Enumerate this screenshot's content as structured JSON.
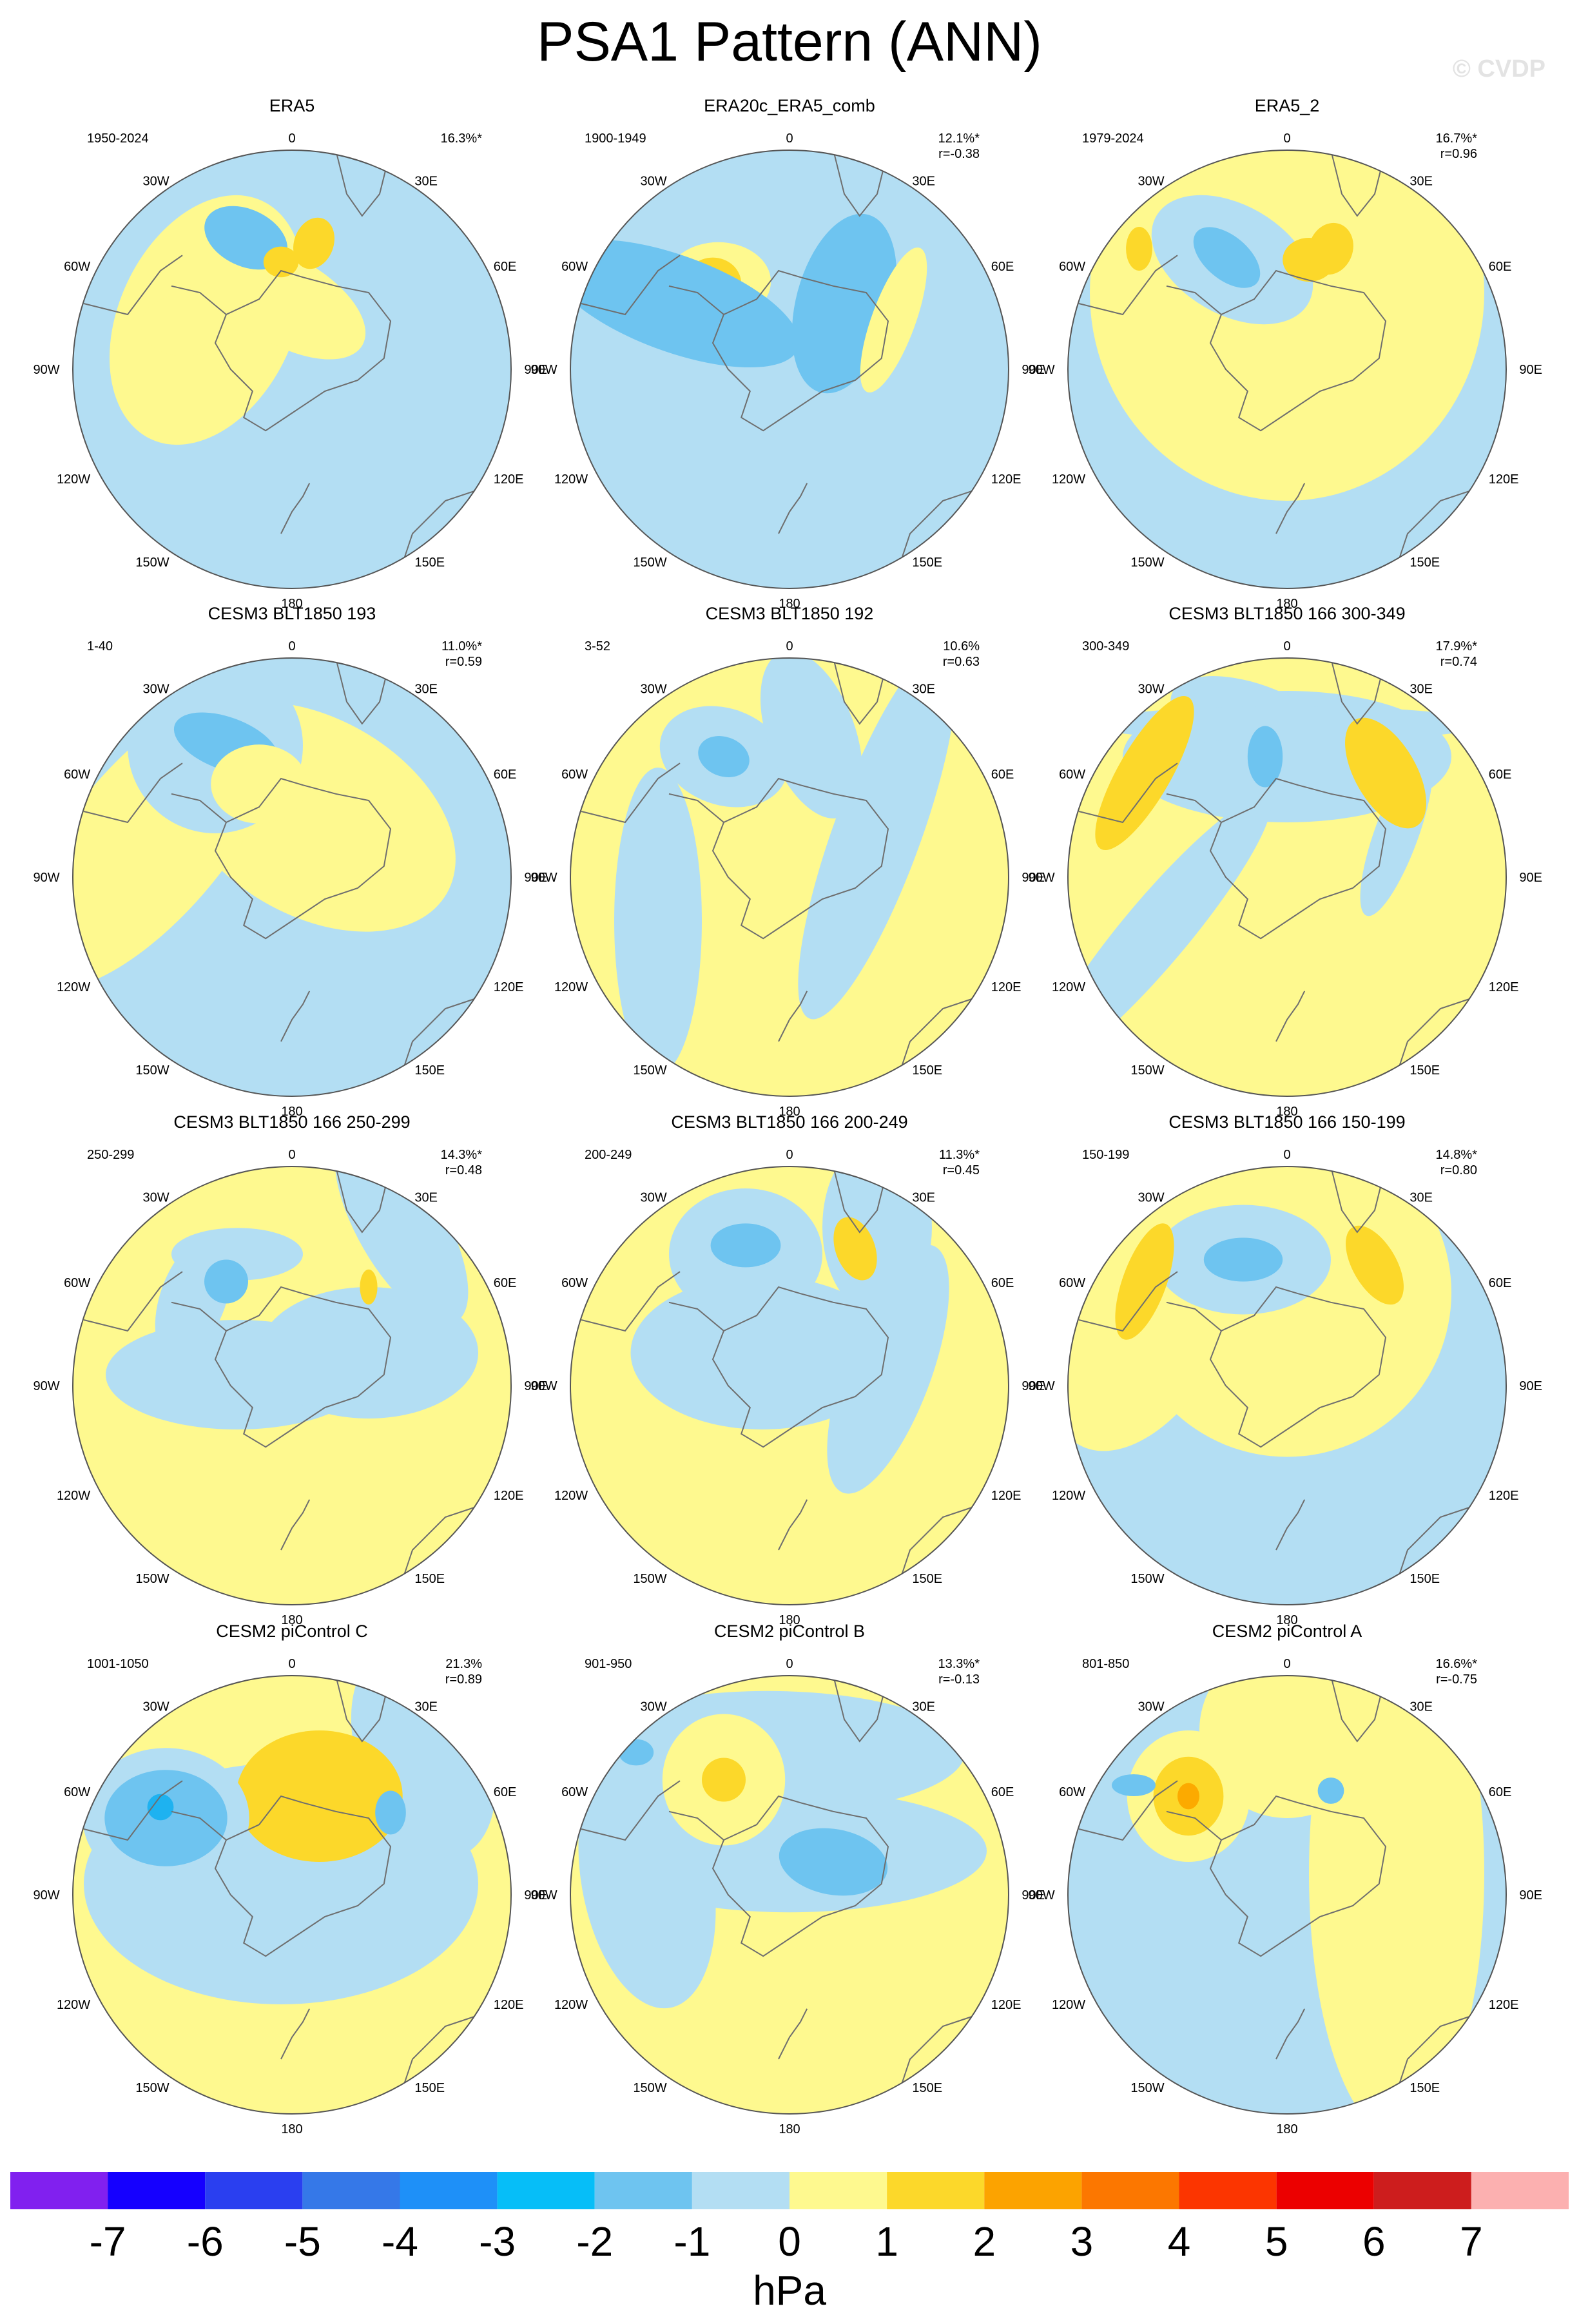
{
  "title": "PSA1 Pattern (ANN)",
  "watermark": "© CVDP",
  "colors": {
    "land_outline": "#6e6e6e",
    "map_border": "#555555",
    "neg1": "#b3def3",
    "neg2": "#6ec4f0",
    "neg3": "#1eb2f0",
    "pos1": "#fef98f",
    "pos2": "#fcd82a",
    "pos3": "#fcaa00"
  },
  "map_labels": {
    "top": "0",
    "bottom": "180",
    "left": [
      "30W",
      "60W",
      "90W",
      "120W",
      "150W"
    ],
    "right": [
      "30E",
      "60E",
      "90E",
      "120E",
      "150E"
    ]
  },
  "chart_data": [
    {
      "type": "heatmap",
      "title": "ERA5",
      "years": "1950-2024",
      "pct": "16.3%*",
      "r": "",
      "base": "neg1",
      "blobs": [
        [
          "pos1",
          -78,
          -45,
          40,
          60,
          25
        ],
        [
          "pos1",
          -5,
          -62,
          40,
          20,
          30
        ],
        [
          "neg2",
          -42,
          -120,
          20,
          13,
          25
        ],
        [
          "pos2",
          -10,
          -98,
          8,
          7,
          0
        ],
        [
          "pos2",
          20,
          -115,
          9,
          12,
          20
        ],
        [
          "pos1",
          -98,
          -40,
          20,
          14,
          0
        ]
      ]
    },
    {
      "type": "heatmap",
      "title": "ERA20c_ERA5_comb",
      "years": "1900-1949",
      "pct": "12.1%*",
      "r": "r=-0.38",
      "base": "neg1",
      "blobs": [
        [
          "pos1",
          -65,
          -80,
          24,
          18,
          0
        ],
        [
          "pos2",
          -70,
          -78,
          13,
          12,
          0
        ],
        [
          "neg2",
          -105,
          -60,
          22,
          60,
          -70
        ],
        [
          "neg2",
          50,
          -60,
          22,
          42,
          15
        ],
        [
          "pos1",
          95,
          -45,
          10,
          35,
          20
        ]
      ]
    },
    {
      "type": "heatmap",
      "title": "ERA5_2",
      "years": "1979-2024",
      "pct": "16.7%*",
      "r": "r=0.96",
      "base": "neg1",
      "blobs": [
        [
          "pos1",
          0,
          -70,
          90,
          95,
          0
        ],
        [
          "neg1",
          -50,
          -100,
          40,
          25,
          30
        ],
        [
          "neg2",
          -55,
          -102,
          18,
          10,
          40
        ],
        [
          "pos2",
          20,
          -100,
          12,
          10,
          0
        ],
        [
          "pos2",
          40,
          -110,
          10,
          12,
          20
        ],
        [
          "pos2",
          -135,
          -110,
          6,
          10,
          0
        ]
      ]
    },
    {
      "type": "heatmap",
      "title": "CESM3 BLT1850 193",
      "years": "1-40",
      "pct": "11.0%*",
      "r": "r=0.59",
      "base": "neg1",
      "blobs": [
        [
          "pos1",
          20,
          -55,
          70,
          45,
          30
        ],
        [
          "pos1",
          -130,
          -35,
          35,
          85,
          40
        ],
        [
          "neg1",
          -70,
          -120,
          40,
          40,
          0
        ],
        [
          "neg2",
          -60,
          -122,
          25,
          12,
          20
        ],
        [
          "pos1",
          -30,
          -85,
          22,
          18,
          0
        ]
      ]
    },
    {
      "type": "heatmap",
      "title": "CESM3 BLT1850 192",
      "years": "3-52",
      "pct": "10.6%",
      "r": "r=0.63",
      "base": "pos1",
      "blobs": [
        [
          "neg1",
          80,
          -40,
          20,
          90,
          20
        ],
        [
          "neg1",
          -60,
          -110,
          30,
          22,
          20
        ],
        [
          "neg2",
          -60,
          -110,
          12,
          9,
          20
        ],
        [
          "neg1",
          20,
          -130,
          20,
          40,
          -20
        ],
        [
          "neg1",
          -120,
          40,
          20,
          70,
          0
        ]
      ]
    },
    {
      "type": "heatmap",
      "title": "CESM3 BLT1850 166 300-349",
      "years": "300-349",
      "pct": "17.9%*",
      "r": "r=0.74",
      "base": "pos1",
      "blobs": [
        [
          "neg1",
          0,
          -110,
          75,
          30,
          0
        ],
        [
          "neg1",
          -30,
          -140,
          40,
          18,
          20
        ],
        [
          "neg1",
          -120,
          50,
          15,
          80,
          40
        ],
        [
          "neg1",
          100,
          -40,
          10,
          40,
          20
        ],
        [
          "neg1",
          0,
          -140,
          90,
          8,
          0
        ],
        [
          "pos2",
          -130,
          -95,
          12,
          40,
          30
        ],
        [
          "pos2",
          90,
          -95,
          14,
          28,
          -30
        ],
        [
          "neg2",
          -20,
          -110,
          8,
          14,
          0
        ]
      ]
    },
    {
      "type": "heatmap",
      "title": "CESM3 BLT1850 166 250-299",
      "years": "250-299",
      "pct": "14.3%*",
      "r": "r=0.48",
      "base": "pos1",
      "blobs": [
        [
          "neg1",
          -50,
          -10,
          60,
          25,
          0
        ],
        [
          "neg1",
          -90,
          -80,
          15,
          30,
          20
        ],
        [
          "neg1",
          -50,
          -120,
          30,
          12,
          0
        ],
        [
          "neg1",
          100,
          -145,
          20,
          50,
          -30
        ],
        [
          "neg1",
          70,
          -30,
          50,
          30,
          0
        ],
        [
          "neg2",
          -60,
          -95,
          10,
          10,
          0
        ],
        [
          "pos2",
          70,
          -90,
          4,
          8,
          0
        ]
      ]
    },
    {
      "type": "heatmap",
      "title": "CESM3 BLT1850 166 200-249",
      "years": "200-249",
      "pct": "11.3%*",
      "r": "r=0.45",
      "base": "pos1",
      "blobs": [
        [
          "neg1",
          -25,
          -30,
          60,
          35,
          0
        ],
        [
          "neg1",
          -40,
          -120,
          35,
          30,
          0
        ],
        [
          "neg1",
          90,
          -15,
          20,
          60,
          20
        ],
        [
          "neg1",
          80,
          -145,
          25,
          40,
          0
        ],
        [
          "neg2",
          -40,
          -128,
          16,
          10,
          0
        ],
        [
          "pos2",
          60,
          -125,
          9,
          15,
          -20
        ]
      ]
    },
    {
      "type": "heatmap",
      "title": "CESM3 BLT1850 166 150-199",
      "years": "150-199",
      "pct": "14.8%*",
      "r": "r=0.80",
      "base": "neg1",
      "blobs": [
        [
          "pos1",
          0,
          -85,
          75,
          75,
          0
        ],
        [
          "pos1",
          -130,
          -50,
          35,
          60,
          30
        ],
        [
          "neg1",
          -40,
          -115,
          40,
          25,
          0
        ],
        [
          "neg2",
          -40,
          -115,
          18,
          10,
          0
        ],
        [
          "pos2",
          -130,
          -95,
          10,
          28,
          20
        ],
        [
          "pos2",
          80,
          -110,
          10,
          20,
          -30
        ]
      ]
    },
    {
      "type": "heatmap",
      "title": "CESM2 piControl C",
      "years": "1001-1050",
      "pct": "21.3%",
      "r": "r=0.89",
      "base": "pos1",
      "blobs": [
        [
          "neg1",
          -10,
          -10,
          90,
          55,
          0
        ],
        [
          "neg1",
          120,
          -130,
          30,
          50,
          -20
        ],
        [
          "pos2",
          25,
          -90,
          38,
          30,
          0
        ],
        [
          "neg1",
          -115,
          -70,
          38,
          32,
          0
        ],
        [
          "neg2",
          -115,
          -70,
          28,
          22,
          0
        ],
        [
          "neg3",
          -120,
          -80,
          6,
          6,
          0
        ],
        [
          "neg2",
          90,
          -75,
          7,
          10,
          0
        ]
      ]
    },
    {
      "type": "heatmap",
      "title": "CESM2 piControl B",
      "years": "901-950",
      "pct": "13.3%*",
      "r": "r=-0.13",
      "base": "pos1",
      "blobs": [
        [
          "neg1",
          0,
          -40,
          90,
          28,
          0
        ],
        [
          "neg1",
          -20,
          -130,
          90,
          28,
          0
        ],
        [
          "neg1",
          -130,
          -15,
          30,
          60,
          -10
        ],
        [
          "pos1",
          -60,
          -105,
          28,
          30,
          0
        ],
        [
          "neg2",
          40,
          -30,
          25,
          15,
          10
        ],
        [
          "pos2",
          -60,
          -105,
          10,
          10,
          0
        ],
        [
          "neg2",
          -140,
          -130,
          8,
          6,
          0
        ]
      ]
    },
    {
      "type": "heatmap",
      "title": "CESM2 piControl A",
      "years": "801-850",
      "pct": "16.6%*",
      "r": "r=-0.75",
      "base": "neg1",
      "blobs": [
        [
          "pos1",
          100,
          -20,
          40,
          120,
          0
        ],
        [
          "pos1",
          -90,
          -90,
          28,
          30,
          0
        ],
        [
          "pos1",
          0,
          -150,
          40,
          40,
          -10
        ],
        [
          "pos2",
          -90,
          -90,
          16,
          18,
          0
        ],
        [
          "pos3",
          -90,
          -90,
          5,
          6,
          0
        ],
        [
          "neg2",
          -140,
          -100,
          10,
          5,
          0
        ],
        [
          "neg2",
          40,
          -95,
          6,
          6,
          0
        ]
      ]
    }
  ],
  "colorbar": {
    "colors": [
      "#8120ef",
      "#1500ff",
      "#2a3ff0",
      "#3578e8",
      "#1e90f8",
      "#06bef8",
      "#6ec4f0",
      "#b3def3",
      "#fef98f",
      "#fcd82a",
      "#fca300",
      "#fc7700",
      "#fc3500",
      "#ec0000",
      "#cd1d1d",
      "#fcb0b0"
    ],
    "labels": [
      "-7",
      "-6",
      "-5",
      "-4",
      "-3",
      "-2",
      "-1",
      "0",
      "1",
      "2",
      "3",
      "4",
      "5",
      "6",
      "7"
    ],
    "units": "hPa"
  }
}
